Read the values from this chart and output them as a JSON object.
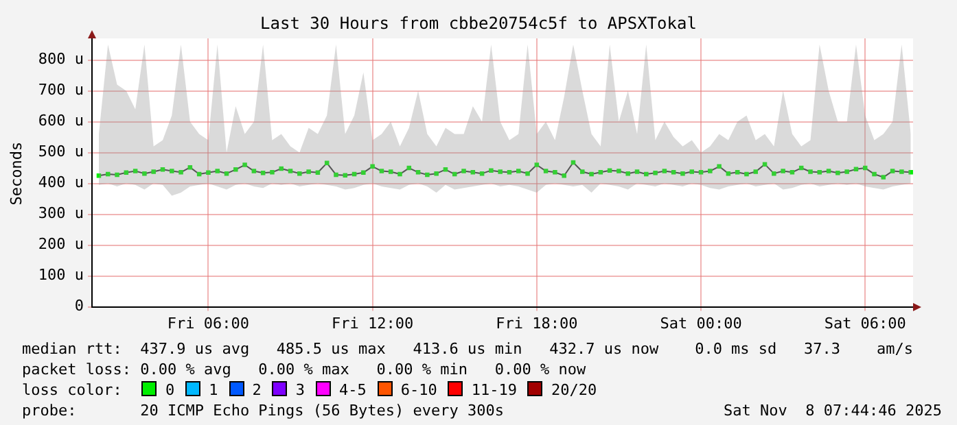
{
  "chart_data": {
    "type": "line",
    "title": "Last 30 Hours from cbbe20754c5f to APSXTokal",
    "ylabel": "Seconds",
    "x": [
      "2025-11-07T02:00",
      "2025-11-07T02:20",
      "2025-11-07T02:40",
      "2025-11-07T03:00",
      "2025-11-07T03:20",
      "2025-11-07T03:40",
      "2025-11-07T04:00",
      "2025-11-07T04:20",
      "2025-11-07T04:40",
      "2025-11-07T05:00",
      "2025-11-07T05:20",
      "2025-11-07T05:40",
      "2025-11-07T06:00",
      "2025-11-07T06:20",
      "2025-11-07T06:40",
      "2025-11-07T07:00",
      "2025-11-07T07:20",
      "2025-11-07T07:40",
      "2025-11-07T08:00",
      "2025-11-07T08:20",
      "2025-11-07T08:40",
      "2025-11-07T09:00",
      "2025-11-07T09:20",
      "2025-11-07T09:40",
      "2025-11-07T10:00",
      "2025-11-07T10:20",
      "2025-11-07T10:40",
      "2025-11-07T11:00",
      "2025-11-07T11:20",
      "2025-11-07T11:40",
      "2025-11-07T12:00",
      "2025-11-07T12:20",
      "2025-11-07T12:40",
      "2025-11-07T13:00",
      "2025-11-07T13:20",
      "2025-11-07T13:40",
      "2025-11-07T14:00",
      "2025-11-07T14:20",
      "2025-11-07T14:40",
      "2025-11-07T15:00",
      "2025-11-07T15:20",
      "2025-11-07T15:40",
      "2025-11-07T16:00",
      "2025-11-07T16:20",
      "2025-11-07T16:40",
      "2025-11-07T17:00",
      "2025-11-07T17:20",
      "2025-11-07T17:40",
      "2025-11-07T18:00",
      "2025-11-07T18:20",
      "2025-11-07T18:40",
      "2025-11-07T19:00",
      "2025-11-07T19:20",
      "2025-11-07T19:40",
      "2025-11-07T20:00",
      "2025-11-07T20:20",
      "2025-11-07T20:40",
      "2025-11-07T21:00",
      "2025-11-07T21:20",
      "2025-11-07T21:40",
      "2025-11-07T22:00",
      "2025-11-07T22:20",
      "2025-11-07T22:40",
      "2025-11-07T23:00",
      "2025-11-07T23:20",
      "2025-11-07T23:40",
      "2025-11-08T00:00",
      "2025-11-08T00:20",
      "2025-11-08T00:40",
      "2025-11-08T01:00",
      "2025-11-08T01:20",
      "2025-11-08T01:40",
      "2025-11-08T02:00",
      "2025-11-08T02:20",
      "2025-11-08T02:40",
      "2025-11-08T03:00",
      "2025-11-08T03:20",
      "2025-11-08T03:40",
      "2025-11-08T04:00",
      "2025-11-08T04:20",
      "2025-11-08T04:40",
      "2025-11-08T05:00",
      "2025-11-08T05:20",
      "2025-11-08T05:40",
      "2025-11-08T06:00",
      "2025-11-08T06:20",
      "2025-11-08T06:40",
      "2025-11-08T07:00",
      "2025-11-08T07:20",
      "2025-11-08T07:40"
    ],
    "series": [
      {
        "name": "0",
        "color": "#00ee00",
        "values": [
          425,
          430,
          428,
          435,
          440,
          432,
          438,
          445,
          440,
          436,
          452,
          430,
          435,
          440,
          432,
          445,
          460,
          440,
          434,
          436,
          448,
          440,
          432,
          438,
          435,
          466,
          428,
          426,
          430,
          435,
          455,
          440,
          438,
          430,
          450,
          436,
          428,
          432,
          445,
          430,
          440,
          436,
          432,
          442,
          438,
          436,
          440,
          432,
          460,
          440,
          436,
          425,
          468,
          438,
          430,
          436,
          442,
          440,
          432,
          438,
          430,
          434,
          440,
          436,
          432,
          438,
          436,
          440,
          455,
          432,
          436,
          430,
          438,
          462,
          432,
          440,
          436,
          450,
          438,
          436,
          440,
          434,
          438,
          446,
          450,
          430,
          420,
          440,
          438,
          436
        ],
        "lower": [
          395,
          400,
          390,
          400,
          395,
          380,
          400,
          395,
          360,
          370,
          390,
          395,
          400,
          390,
          380,
          395,
          400,
          390,
          385,
          400,
          395,
          400,
          390,
          395,
          400,
          395,
          390,
          380,
          385,
          395,
          400,
          390,
          385,
          380,
          395,
          400,
          390,
          370,
          395,
          380,
          385,
          390,
          395,
          400,
          390,
          395,
          390,
          380,
          370,
          395,
          400,
          395,
          390,
          395,
          370,
          400,
          395,
          390,
          380,
          400,
          395,
          390,
          400,
          395,
          390,
          400,
          395,
          385,
          380,
          390,
          395,
          400,
          390,
          395,
          400,
          380,
          385,
          395,
          400,
          390,
          395,
          400,
          395,
          400,
          390,
          385,
          380,
          390,
          395,
          400
        ],
        "upper": [
          560,
          850,
          720,
          700,
          640,
          850,
          520,
          540,
          620,
          850,
          600,
          560,
          540,
          850,
          500,
          650,
          560,
          600,
          850,
          540,
          560,
          520,
          500,
          580,
          560,
          620,
          850,
          560,
          620,
          760,
          540,
          560,
          600,
          520,
          580,
          700,
          560,
          520,
          580,
          560,
          560,
          650,
          600,
          850,
          600,
          540,
          560,
          850,
          560,
          600,
          540,
          680,
          850,
          700,
          560,
          520,
          850,
          600,
          700,
          560,
          850,
          540,
          600,
          550,
          520,
          540,
          500,
          520,
          560,
          540,
          600,
          620,
          540,
          560,
          520,
          700,
          560,
          520,
          540,
          850,
          700,
          600,
          600,
          850,
          620,
          540,
          560,
          600,
          850,
          560
        ]
      },
      {
        "name": "1",
        "color": "#00b8ff",
        "values": [
          null,
          null,
          null,
          null,
          null,
          null,
          null,
          null,
          null,
          null,
          null,
          null,
          null,
          null,
          null,
          null,
          null,
          null,
          null,
          null,
          null,
          null,
          null,
          null,
          null,
          null,
          null,
          null,
          null,
          null,
          null,
          null,
          null,
          null,
          null,
          null,
          null,
          null,
          null,
          null,
          null,
          null,
          null,
          null,
          null,
          null,
          null,
          null,
          null,
          null,
          null,
          null,
          null,
          null,
          null,
          null,
          null,
          null,
          null,
          null,
          null,
          null,
          null,
          null,
          null,
          null,
          null,
          null,
          null,
          null,
          null,
          null,
          null,
          null,
          null,
          null,
          null,
          null,
          null,
          null,
          null,
          null,
          null,
          null,
          null,
          null,
          null,
          null,
          null,
          null
        ]
      },
      {
        "name": "2",
        "color": "#0059ff",
        "values": [
          null,
          null,
          null,
          null,
          null,
          null,
          null,
          null,
          null,
          null,
          null,
          null,
          null,
          null,
          null,
          null,
          null,
          null,
          null,
          null,
          null,
          null,
          null,
          null,
          null,
          null,
          null,
          null,
          null,
          null,
          null,
          null,
          null,
          null,
          null,
          null,
          null,
          null,
          null,
          null,
          null,
          null,
          null,
          null,
          null,
          null,
          null,
          null,
          null,
          null,
          null,
          null,
          null,
          null,
          null,
          null,
          null,
          null,
          null,
          null,
          null,
          null,
          null,
          null,
          null,
          null,
          null,
          null,
          null,
          null,
          null,
          null,
          null,
          null,
          null,
          null,
          null,
          null,
          null,
          null,
          null,
          null,
          null,
          null,
          null,
          null,
          null,
          null,
          null,
          null
        ]
      },
      {
        "name": "3",
        "color": "#7e00ff",
        "values": [
          null,
          null,
          null,
          null,
          null,
          null,
          null,
          null,
          null,
          null,
          null,
          null,
          null,
          null,
          null,
          null,
          null,
          null,
          null,
          null,
          null,
          null,
          null,
          null,
          null,
          null,
          null,
          null,
          null,
          null,
          null,
          null,
          null,
          null,
          null,
          null,
          null,
          null,
          null,
          null,
          null,
          null,
          null,
          null,
          null,
          null,
          null,
          null,
          null,
          null,
          null,
          null,
          null,
          null,
          null,
          null,
          null,
          null,
          null,
          null,
          null,
          null,
          null,
          null,
          null,
          null,
          null,
          null,
          null,
          null,
          null,
          null,
          null,
          null,
          null,
          null,
          null,
          null,
          null,
          null,
          null,
          null,
          null,
          null,
          null,
          null,
          null,
          null,
          null,
          null
        ]
      },
      {
        "name": "4-5",
        "color": "#ff00ff",
        "values": [
          null,
          null,
          null,
          null,
          null,
          null,
          null,
          null,
          null,
          null,
          null,
          null,
          null,
          null,
          null,
          null,
          null,
          null,
          null,
          null,
          null,
          null,
          null,
          null,
          null,
          null,
          null,
          null,
          null,
          null,
          null,
          null,
          null,
          null,
          null,
          null,
          null,
          null,
          null,
          null,
          null,
          null,
          null,
          null,
          null,
          null,
          null,
          null,
          null,
          null,
          null,
          null,
          null,
          null,
          null,
          null,
          null,
          null,
          null,
          null,
          null,
          null,
          null,
          null,
          null,
          null,
          null,
          null,
          null,
          null,
          null,
          null,
          null,
          null,
          null,
          null,
          null,
          null,
          null,
          null,
          null,
          null,
          null,
          null,
          null,
          null,
          null,
          null,
          null,
          null
        ]
      },
      {
        "name": "6-10",
        "color": "#ff5500",
        "values": [
          null,
          null,
          null,
          null,
          null,
          null,
          null,
          null,
          null,
          null,
          null,
          null,
          null,
          null,
          null,
          null,
          null,
          null,
          null,
          null,
          null,
          null,
          null,
          null,
          null,
          null,
          null,
          null,
          null,
          null,
          null,
          null,
          null,
          null,
          null,
          null,
          null,
          null,
          null,
          null,
          null,
          null,
          null,
          null,
          null,
          null,
          null,
          null,
          null,
          null,
          null,
          null,
          null,
          null,
          null,
          null,
          null,
          null,
          null,
          null,
          null,
          null,
          null,
          null,
          null,
          null,
          null,
          null,
          null,
          null,
          null,
          null,
          null,
          null,
          null,
          null,
          null,
          null,
          null,
          null,
          null,
          null,
          null,
          null,
          null,
          null,
          null,
          null,
          null,
          null
        ]
      },
      {
        "name": "11-19",
        "color": "#ff0000",
        "values": [
          null,
          null,
          null,
          null,
          null,
          null,
          null,
          null,
          null,
          null,
          null,
          null,
          null,
          null,
          null,
          null,
          null,
          null,
          null,
          null,
          null,
          null,
          null,
          null,
          null,
          null,
          null,
          null,
          null,
          null,
          null,
          null,
          null,
          null,
          null,
          null,
          null,
          null,
          null,
          null,
          null,
          null,
          null,
          null,
          null,
          null,
          null,
          null,
          null,
          null,
          null,
          null,
          null,
          null,
          null,
          null,
          null,
          null,
          null,
          null,
          null,
          null,
          null,
          null,
          null,
          null,
          null,
          null,
          null,
          null,
          null,
          null,
          null,
          null,
          null,
          null,
          null,
          null,
          null,
          null,
          null,
          null,
          null,
          null,
          null,
          null,
          null,
          null,
          null,
          null
        ]
      },
      {
        "name": "20/20",
        "color": "#a10000",
        "values": [
          null,
          null,
          null,
          null,
          null,
          null,
          null,
          null,
          null,
          null,
          null,
          null,
          null,
          null,
          null,
          null,
          null,
          null,
          null,
          null,
          null,
          null,
          null,
          null,
          null,
          null,
          null,
          null,
          null,
          null,
          null,
          null,
          null,
          null,
          null,
          null,
          null,
          null,
          null,
          null,
          null,
          null,
          null,
          null,
          null,
          null,
          null,
          null,
          null,
          null,
          null,
          null,
          null,
          null,
          null,
          null,
          null,
          null,
          null,
          null,
          null,
          null,
          null,
          null,
          null,
          null,
          null,
          null,
          null,
          null,
          null,
          null,
          null,
          null,
          null,
          null,
          null,
          null,
          null,
          null,
          null,
          null,
          null,
          null,
          null,
          null,
          null,
          null,
          null,
          null
        ]
      }
    ],
    "legend_title": "loss color:",
    "legend": "bottom",
    "xlim": [
      "2025-11-07T01:45",
      "2025-11-08T07:45"
    ],
    "xticks": [
      {
        "value": "2025-11-07T06:00",
        "label": "Fri 06:00"
      },
      {
        "value": "2025-11-07T12:00",
        "label": "Fri 12:00"
      },
      {
        "value": "2025-11-07T18:00",
        "label": "Fri 18:00"
      },
      {
        "value": "2025-11-08T00:00",
        "label": "Sat 00:00"
      },
      {
        "value": "2025-11-08T06:00",
        "label": "Sat 06:00"
      }
    ],
    "ylim": [
      0,
      870
    ],
    "yticks": [
      0,
      {
        "value": 100,
        "label": "100 u"
      },
      {
        "value": 200,
        "label": "200 u"
      },
      {
        "value": 300,
        "label": "300 u"
      },
      {
        "value": 400,
        "label": "400 u"
      },
      {
        "value": 500,
        "label": "500 u"
      },
      {
        "value": 600,
        "label": "600 u"
      },
      {
        "value": 700,
        "label": "700 u"
      },
      {
        "value": 800,
        "label": "800 u"
      }
    ],
    "grid": true,
    "marker": "square",
    "line_style": "solid",
    "annotations": [
      "median rtt:  437.9 us avg   485.5 us max   413.6 us min   432.7 us now    0.0 ms sd   37.3    am/s",
      "packet loss: 0.00 % avg   0.00 % max   0.00 % min   0.00 % now",
      "probe:       20 ICMP Echo Pings (56 Bytes) every 300s",
      "Sat Nov  8 07:44:46 2025"
    ]
  }
}
